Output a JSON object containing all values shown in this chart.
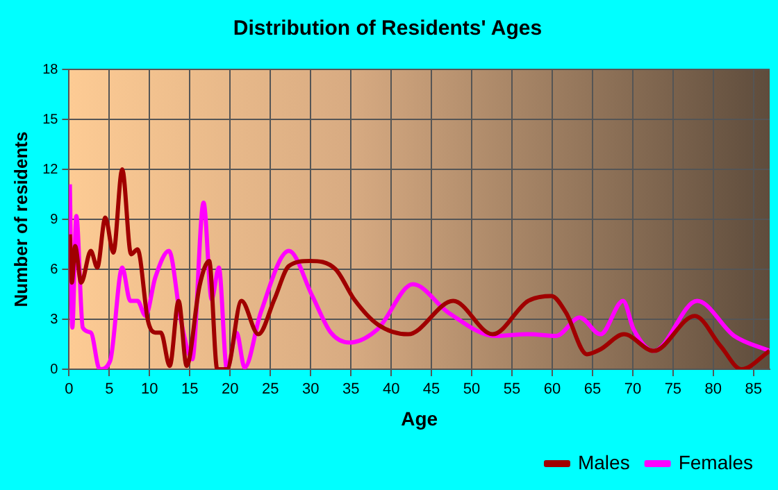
{
  "chart_data": {
    "type": "line",
    "title": "Distribution of Residents' Ages",
    "xlabel": "Age",
    "ylabel": "Number of residents",
    "xlim": [
      0,
      87
    ],
    "xticks": [
      0,
      5,
      10,
      15,
      20,
      25,
      30,
      35,
      40,
      45,
      50,
      55,
      60,
      65,
      70,
      75,
      80,
      85
    ],
    "ylim": [
      0,
      18
    ],
    "yticks": [
      0,
      3,
      6,
      9,
      12,
      15,
      18
    ],
    "grid": true,
    "legend": "bottom right",
    "marker": "none",
    "line_style": "solid",
    "series": [
      {
        "name": "Males",
        "color": "#a00000",
        "x": [
          0.1,
          0.35,
          0.75,
          1.5,
          2.7,
          3.5,
          4.5,
          5.5,
          6.6,
          7.7,
          8.5,
          9.8,
          10.7,
          11.4,
          12.5,
          13.6,
          14.6,
          16.2,
          17.4,
          18.4,
          19.6,
          21.4,
          23.5,
          25.5,
          27.3,
          29.9,
          33.1,
          35.4,
          38.3,
          42.1,
          47.7,
          52.6,
          57,
          59.9,
          61.7,
          64.3,
          66,
          68.9,
          72.6,
          77.7,
          80.9,
          83.5,
          87
        ],
        "values": [
          8.1,
          5.2,
          7.4,
          5.2,
          7.1,
          6.1,
          9.1,
          7.0,
          12,
          6.9,
          7.2,
          2.9,
          2.2,
          2.2,
          0.2,
          4.1,
          0.2,
          5.0,
          6.5,
          0,
          0,
          4.1,
          2.1,
          4.2,
          6.2,
          6.5,
          6.0,
          4.2,
          2.7,
          2.1,
          4.1,
          2.1,
          4.1,
          4.4,
          3.4,
          0.9,
          1.2,
          2.1,
          1.1,
          3.2,
          1.4,
          0,
          1.1
        ]
      },
      {
        "name": "Females",
        "color": "#ff00ff",
        "x": [
          0.1,
          0.4,
          0.9,
          1.7,
          2.7,
          3.8,
          5.1,
          6.6,
          7.6,
          8.5,
          9.5,
          10.7,
          12.4,
          13.9,
          15.3,
          16.7,
          17.7,
          18.6,
          19.6,
          20.8,
          21.8,
          23.8,
          27.3,
          30.2,
          32.5,
          34.8,
          38.3,
          42.7,
          47.1,
          52.9,
          57,
          60.5,
          63.4,
          66,
          68.8,
          70.1,
          72.6,
          78,
          82.6,
          87
        ],
        "values": [
          11.1,
          2.5,
          9.2,
          2.5,
          2.2,
          0,
          0.5,
          6.1,
          4.1,
          4.1,
          3.2,
          5.5,
          7.1,
          2.9,
          0.6,
          10,
          4.2,
          6.1,
          0,
          2.2,
          0.1,
          3.4,
          7.1,
          4.4,
          2.2,
          1.6,
          2.4,
          5.1,
          3.4,
          2.0,
          2.1,
          2.0,
          3.1,
          2.1,
          4.1,
          2.4,
          1.1,
          4.1,
          2.0,
          1.1
        ]
      }
    ]
  }
}
